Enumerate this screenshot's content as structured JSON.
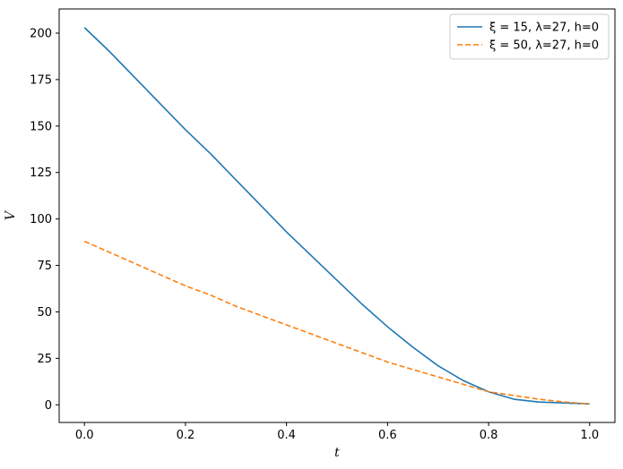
{
  "chart_data": {
    "type": "line",
    "xlabel": "t",
    "ylabel": "V",
    "xlim": [
      -0.05,
      1.05
    ],
    "ylim": [
      -9.5,
      213
    ],
    "xticks": [
      0.0,
      0.2,
      0.4,
      0.6,
      0.8,
      1.0
    ],
    "xtick_labels": [
      "0.0",
      "0.2",
      "0.4",
      "0.6",
      "0.8",
      "1.0"
    ],
    "yticks": [
      0,
      25,
      50,
      75,
      100,
      125,
      150,
      175,
      200
    ],
    "ytick_labels": [
      "0",
      "25",
      "50",
      "75",
      "100",
      "125",
      "150",
      "175",
      "200"
    ],
    "grid": false,
    "legend_position": "top-right",
    "x": [
      0.0,
      0.05,
      0.1,
      0.15,
      0.2,
      0.25,
      0.3,
      0.35,
      0.4,
      0.45,
      0.5,
      0.55,
      0.6,
      0.65,
      0.7,
      0.75,
      0.8,
      0.85,
      0.9,
      0.95,
      1.0
    ],
    "series": [
      {
        "name": "ξ = 15, λ=27, h=0",
        "color": "#1f77b4",
        "style": "solid",
        "values": [
          203,
          190,
          176,
          162,
          148,
          135,
          121,
          107,
          93,
          80,
          67,
          54,
          42,
          31,
          21,
          13,
          7,
          3,
          1.5,
          1,
          0.5
        ]
      },
      {
        "name": "ξ = 50, λ=27, h=0",
        "color": "#ff7f0e",
        "style": "dashed",
        "values": [
          88,
          82,
          76,
          70,
          64,
          59,
          53,
          48,
          43,
          38,
          33,
          28,
          23,
          19,
          15,
          11,
          7,
          5,
          3,
          1.5,
          0.5
        ]
      }
    ]
  }
}
